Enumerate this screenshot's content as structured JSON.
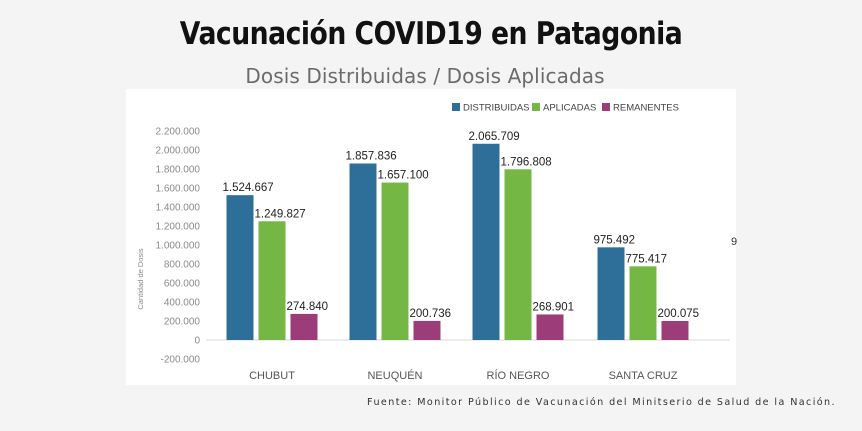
{
  "header": {
    "title": "Vacunación COVID19 en Patagonia",
    "subtitle": "Dosis Distribuidas / Dosis Aplicadas"
  },
  "source": "Fuente: Monitor Público de Vacunación del Minitserio de Salud de la Nación.",
  "stray_label": "9",
  "chart_data": {
    "type": "bar",
    "title": "Vacunación COVID19 en Patagonia",
    "subtitle": "Dosis Distribuidas / Dosis Aplicadas",
    "xlabel": "",
    "ylabel": "Cantidad de Dosis",
    "ylim": [
      -200000,
      2200000
    ],
    "yticks": [
      -200000,
      0,
      200000,
      400000,
      600000,
      800000,
      1000000,
      1200000,
      1400000,
      1600000,
      1800000,
      2000000,
      2200000
    ],
    "ytick_labels": [
      "-200.000",
      "0",
      "200.000",
      "400.000",
      "600.000",
      "800.000",
      "1.000.000",
      "1.200.000",
      "1.400.000",
      "1.600.000",
      "1.800.000",
      "2.000.000",
      "2.200.000"
    ],
    "categories": [
      "CHUBUT",
      "NEUQUÉN",
      "RÍO NEGRO",
      "SANTA CRUZ"
    ],
    "series": [
      {
        "name": "DISTRIBUIDAS",
        "color": "#2d6f99",
        "values": [
          1524667,
          1857836,
          2065709,
          975492
        ],
        "labels": [
          "1.524.667",
          "1.857.836",
          "2.065.709",
          "975.492"
        ]
      },
      {
        "name": "APLICADAS",
        "color": "#75b744",
        "values": [
          1249827,
          1657100,
          1796808,
          775417
        ],
        "labels": [
          "1.249.827",
          "1.657.100",
          "1.796.808",
          "775.417"
        ]
      },
      {
        "name": "REMANENTES",
        "color": "#9c3d79",
        "values": [
          274840,
          200736,
          268901,
          200075
        ],
        "labels": [
          "274.840",
          "200.736",
          "268.901",
          "200.075"
        ]
      }
    ],
    "grid": false,
    "legend": "top-right"
  }
}
